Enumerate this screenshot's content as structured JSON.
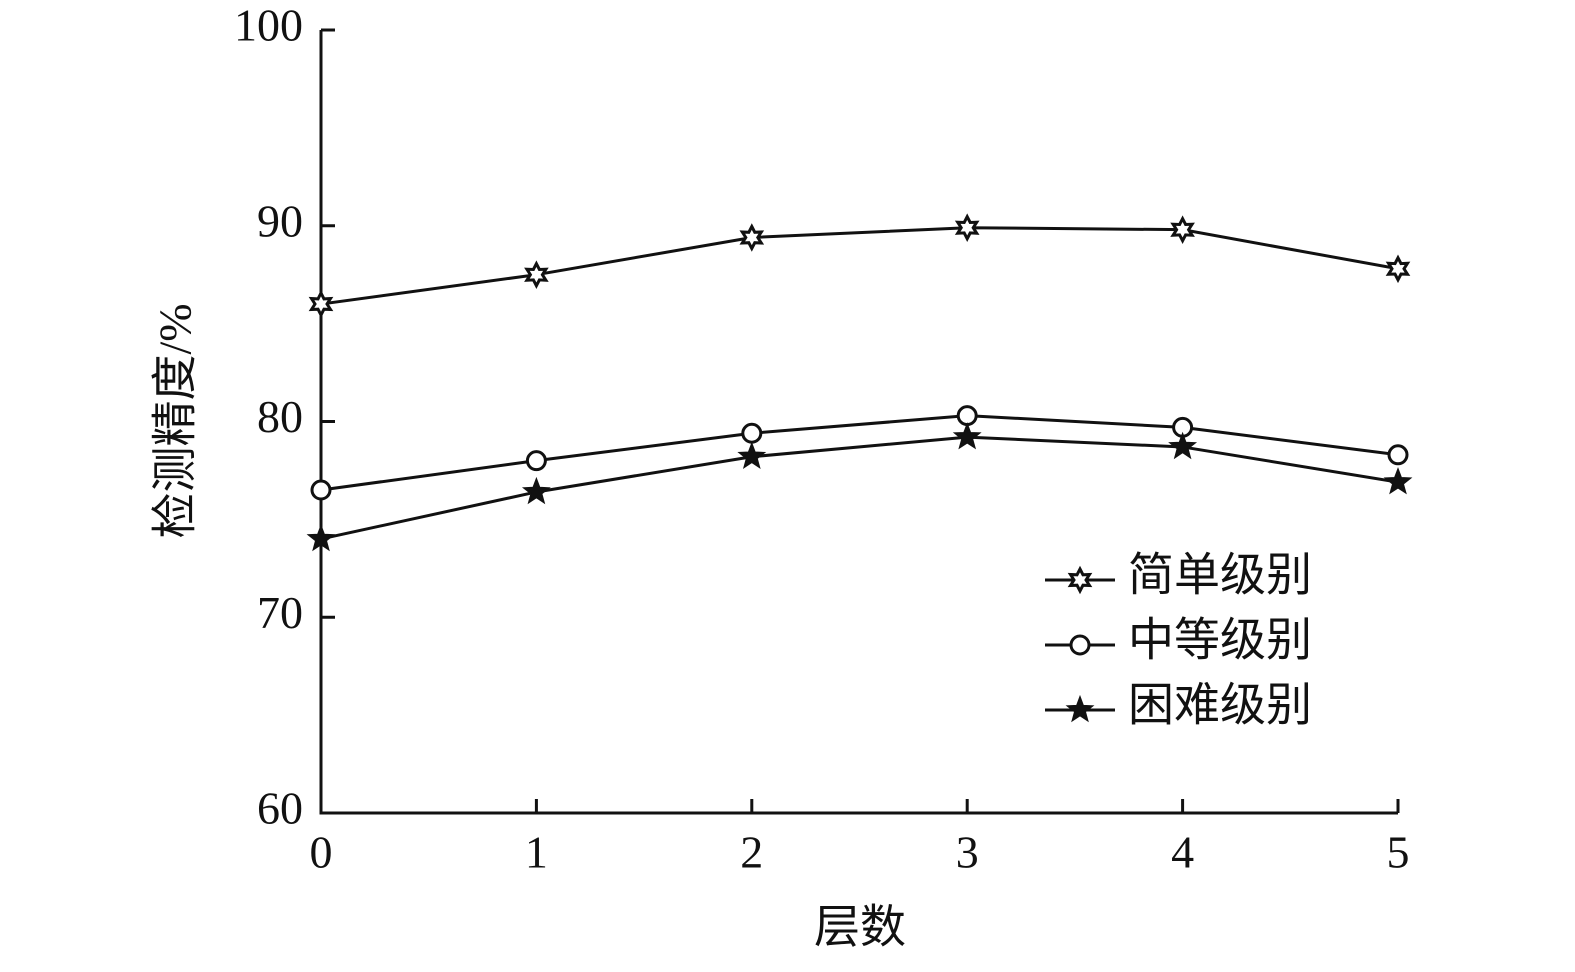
{
  "chart_data": {
    "type": "line",
    "x_label": "层数",
    "y_label": "检测精度/%",
    "x": [
      0,
      1,
      2,
      3,
      4,
      5
    ],
    "series": [
      {
        "name": "简单级别",
        "color": "#111111",
        "marker": "hexagram",
        "values": [
          86.0,
          87.5,
          89.4,
          89.9,
          89.8,
          87.8
        ]
      },
      {
        "name": "中等级别",
        "color": "#111111",
        "marker": "circle",
        "values": [
          76.5,
          78.0,
          79.4,
          80.3,
          79.7,
          78.3
        ]
      },
      {
        "name": "困难级别",
        "color": "#111111",
        "marker": "star",
        "values": [
          74.0,
          76.4,
          78.2,
          79.2,
          78.7,
          76.9
        ]
      }
    ],
    "xlim": [
      0,
      5
    ],
    "xticks": [
      0,
      1,
      2,
      3,
      4,
      5
    ],
    "ylim": [
      60,
      100
    ],
    "yticks": [
      60,
      70,
      80,
      90,
      100
    ],
    "grid": false,
    "legend": "lower right"
  }
}
